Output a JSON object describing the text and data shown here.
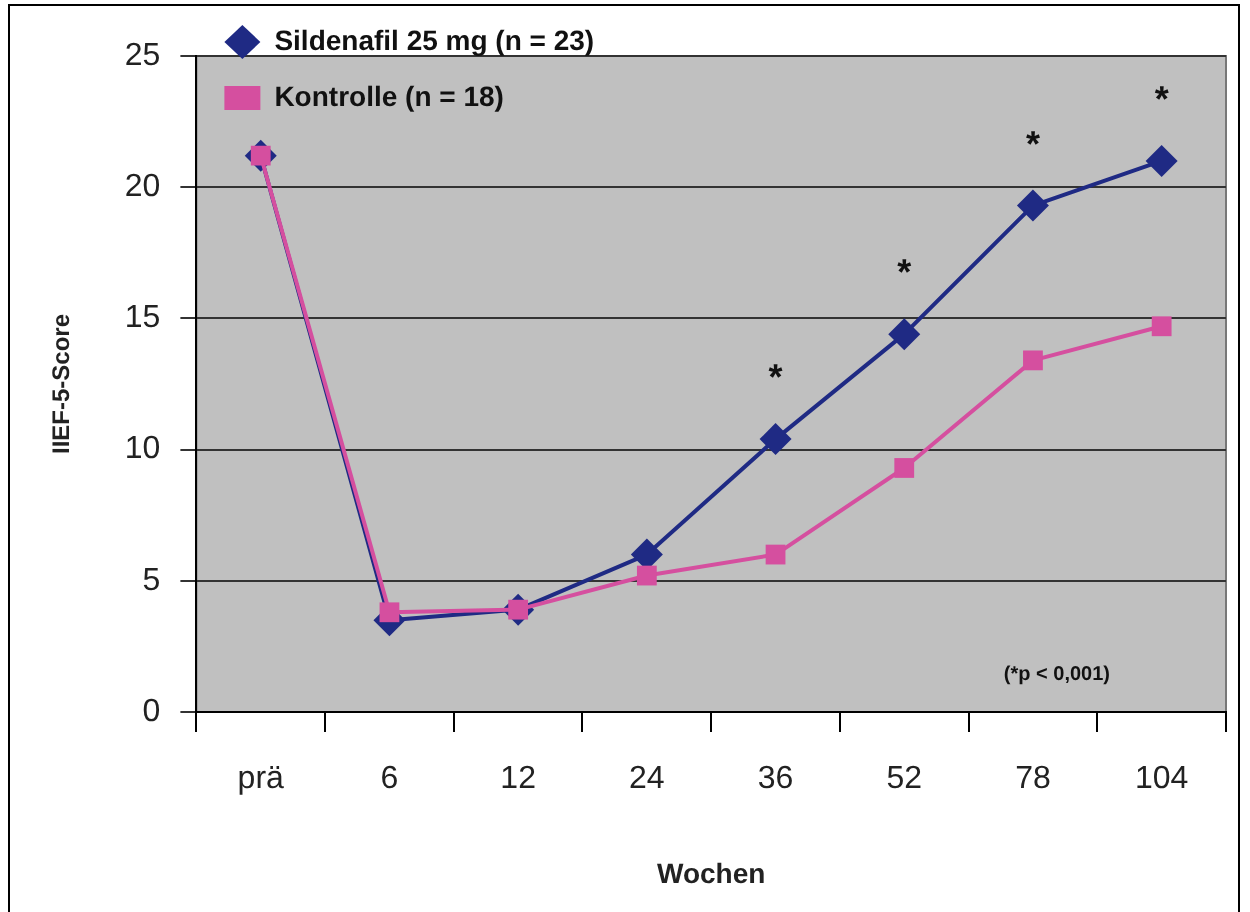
{
  "chart_data": {
    "type": "line",
    "xlabel": "Wochen",
    "ylabel": "IIEF-5-Score",
    "categories": [
      "prä",
      "6",
      "12",
      "24",
      "36",
      "52",
      "78",
      "104"
    ],
    "series": [
      {
        "name": "Sildenafil 25 mg (n = 23)",
        "color": "#1f2a84",
        "marker": "diamond",
        "values": [
          21.2,
          3.5,
          3.9,
          6.0,
          10.4,
          14.4,
          19.3,
          21.0
        ]
      },
      {
        "name": "Kontrolle (n = 18)",
        "color": "#d54f9f",
        "marker": "square",
        "values": [
          21.2,
          3.8,
          3.9,
          5.2,
          6.0,
          9.3,
          13.4,
          14.7
        ]
      }
    ],
    "ylim": [
      0,
      25
    ],
    "yticks": [
      0,
      5,
      10,
      15,
      20,
      25
    ],
    "grid": "y",
    "legend": "top left",
    "line_style": "solid",
    "annotations": [
      {
        "text": "*",
        "x": "36",
        "y": 10.4
      },
      {
        "text": "*",
        "x": "52",
        "y": 14.4
      },
      {
        "text": "*",
        "x": "78",
        "y": 19.3
      },
      {
        "text": "*",
        "x": "104",
        "y": 21.0
      },
      "(*p < 0,001)"
    ]
  }
}
